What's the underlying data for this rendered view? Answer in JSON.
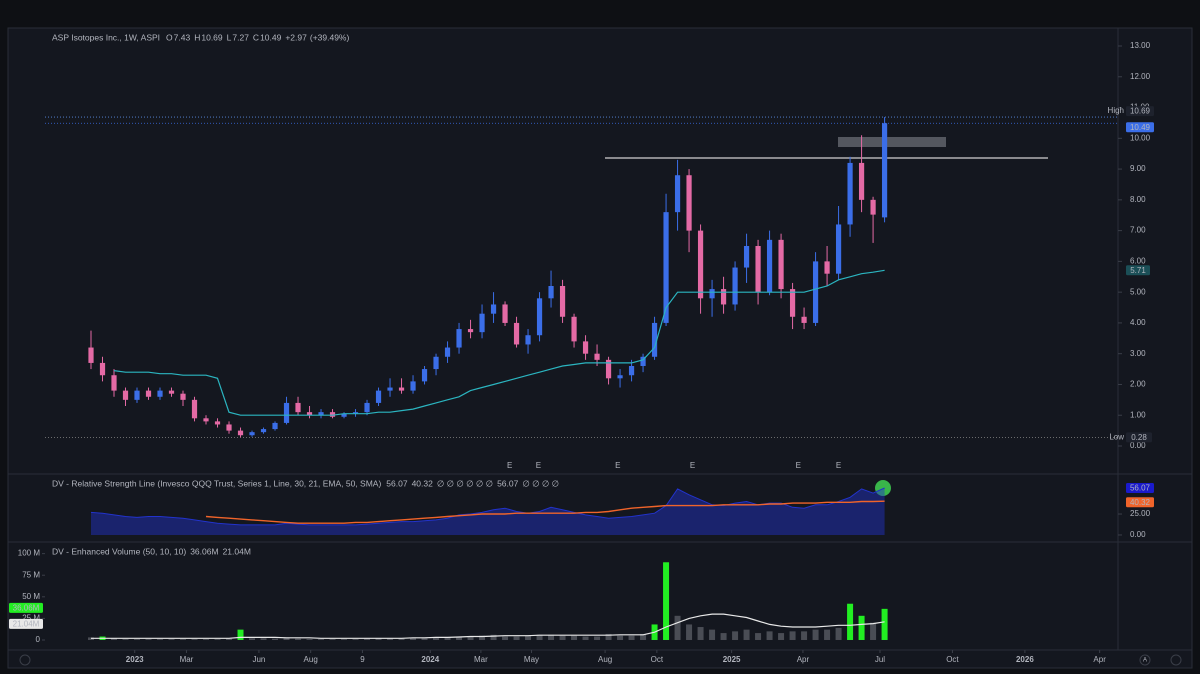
{
  "chart_data": [
    {
      "type": "candlestick",
      "title": "ASP Isotopes Inc., 1W, ASPI",
      "ohlc_letters": [
        "O",
        "H",
        "L",
        "C"
      ],
      "change": {
        "value": 2.97,
        "label": "+2.97"
      },
      "change_pct": {
        "value": 39.49,
        "label": "(+39.49%)"
      },
      "high_label": "High",
      "low_label": "Low",
      "up_color": "#3b6ee8",
      "down_color": "#e46aa5",
      "ma_color": "#2bb5c0",
      "categories": [
        null,
        null,
        null,
        null,
        null,
        null,
        null,
        null,
        null,
        null,
        null,
        null,
        null,
        null,
        null,
        null,
        null,
        null,
        null,
        null,
        null,
        null,
        null,
        null,
        null,
        null,
        null,
        null,
        null,
        null,
        null,
        null,
        null,
        null,
        null,
        null,
        null,
        null,
        null,
        null,
        null,
        null,
        null,
        null,
        null,
        null,
        null,
        null,
        null,
        null,
        null,
        null,
        null,
        null,
        null,
        null,
        null,
        null,
        null,
        null,
        null,
        null,
        null,
        null,
        null,
        null,
        null,
        null,
        null,
        null
      ],
      "open": [
        3.2,
        2.7,
        2.3,
        1.8,
        1.5,
        1.8,
        1.6,
        1.8,
        1.7,
        1.5,
        0.9,
        0.8,
        0.7,
        0.5,
        0.35,
        0.45,
        0.55,
        0.75,
        1.4,
        1.1,
        1.0,
        1.1,
        0.95,
        1.05,
        1.1,
        1.4,
        1.8,
        1.9,
        1.8,
        2.1,
        2.5,
        2.9,
        3.2,
        3.8,
        3.7,
        4.3,
        4.6,
        4.0,
        3.3,
        3.6,
        4.8,
        5.2,
        4.2,
        3.4,
        3.0,
        2.8,
        2.2,
        2.3,
        2.6,
        2.9,
        4.0,
        7.6,
        8.8,
        7.0,
        4.8,
        5.1,
        4.6,
        5.8,
        6.5,
        5.0,
        6.7,
        5.1,
        4.2,
        4.0,
        6.0,
        5.6,
        7.2,
        9.2,
        8.0,
        7.43
      ],
      "high": [
        3.75,
        2.9,
        2.5,
        1.9,
        1.9,
        1.9,
        1.9,
        1.9,
        1.8,
        1.6,
        1.0,
        0.9,
        0.8,
        0.6,
        0.5,
        0.6,
        0.8,
        1.6,
        1.6,
        1.3,
        1.2,
        1.2,
        1.1,
        1.2,
        1.5,
        1.9,
        2.2,
        2.2,
        2.3,
        2.6,
        3.0,
        3.4,
        4.0,
        4.1,
        4.6,
        5.0,
        4.7,
        4.2,
        3.8,
        5.0,
        5.7,
        5.4,
        4.3,
        3.6,
        3.3,
        2.9,
        2.5,
        2.8,
        3.0,
        4.2,
        8.2,
        9.3,
        9.0,
        7.2,
        5.4,
        5.5,
        6.0,
        6.9,
        6.7,
        7.0,
        6.9,
        5.3,
        4.5,
        6.3,
        6.5,
        7.8,
        9.4,
        10.1,
        8.1,
        10.69
      ],
      "low": [
        2.5,
        2.1,
        1.6,
        1.3,
        1.4,
        1.5,
        1.5,
        1.6,
        1.3,
        0.8,
        0.7,
        0.6,
        0.4,
        0.28,
        0.3,
        0.4,
        0.5,
        0.7,
        1.0,
        0.9,
        0.9,
        0.9,
        0.9,
        0.95,
        1.0,
        1.3,
        1.6,
        1.7,
        1.7,
        2.0,
        2.3,
        2.7,
        3.0,
        3.5,
        3.5,
        4.0,
        3.9,
        3.2,
        3.0,
        3.4,
        4.5,
        4.0,
        3.2,
        2.8,
        2.6,
        2.0,
        1.9,
        2.1,
        2.4,
        2.8,
        3.9,
        7.0,
        6.3,
        4.3,
        4.2,
        4.3,
        4.4,
        5.3,
        4.6,
        4.9,
        4.8,
        3.8,
        3.8,
        3.9,
        5.2,
        5.4,
        6.8,
        7.6,
        6.6,
        7.27
      ],
      "close": [
        2.7,
        2.3,
        1.8,
        1.5,
        1.8,
        1.6,
        1.8,
        1.7,
        1.5,
        0.9,
        0.8,
        0.7,
        0.5,
        0.35,
        0.45,
        0.55,
        0.75,
        1.4,
        1.1,
        1.0,
        1.1,
        0.95,
        1.05,
        1.1,
        1.4,
        1.8,
        1.9,
        1.8,
        2.1,
        2.5,
        2.9,
        3.2,
        3.8,
        3.7,
        4.3,
        4.6,
        4.0,
        3.3,
        3.6,
        4.8,
        5.2,
        4.2,
        3.4,
        3.0,
        2.8,
        2.2,
        2.3,
        2.6,
        2.9,
        4.0,
        7.6,
        8.8,
        7.0,
        4.8,
        5.1,
        4.6,
        5.8,
        6.5,
        5.0,
        6.7,
        5.1,
        4.2,
        4.0,
        6.0,
        5.6,
        7.2,
        9.2,
        8.0,
        7.52,
        10.49
      ],
      "ma": [
        null,
        null,
        2.45,
        2.4,
        2.4,
        2.4,
        2.35,
        2.35,
        2.3,
        2.3,
        2.3,
        2.2,
        1.1,
        1.0,
        1.0,
        1.0,
        1.0,
        1.0,
        1.0,
        1.0,
        1.0,
        1.0,
        1.05,
        1.05,
        1.05,
        1.1,
        1.1,
        1.15,
        1.2,
        1.3,
        1.4,
        1.5,
        1.6,
        1.8,
        1.9,
        2.0,
        2.1,
        2.2,
        2.3,
        2.4,
        2.5,
        2.6,
        2.65,
        2.7,
        2.7,
        2.7,
        2.7,
        2.7,
        2.8,
        3.2,
        4.5,
        5.0,
        5.0,
        5.0,
        5.0,
        5.0,
        5.0,
        5.0,
        5.0,
        5.0,
        5.0,
        5.0,
        5.0,
        5.1,
        5.2,
        5.4,
        5.5,
        5.6,
        5.65,
        5.71
      ],
      "events": [
        {
          "x": 36.4,
          "label": "E"
        },
        {
          "x": 38.9,
          "label": "E"
        },
        {
          "x": 45.8,
          "label": "E"
        },
        {
          "x": 52.3,
          "label": "E"
        },
        {
          "x": 61.5,
          "label": "E"
        },
        {
          "x": 65,
          "label": "E"
        }
      ],
      "xlim": [
        -4,
        88.6
      ],
      "ylim": [
        -0.78,
        13.52
      ],
      "yticks": [
        {
          "value": 0,
          "label": "0.00"
        },
        {
          "value": 1,
          "label": "1.00"
        },
        {
          "value": 2,
          "label": "2.00"
        },
        {
          "value": 3,
          "label": "3.00"
        },
        {
          "value": 4,
          "label": "4.00"
        },
        {
          "value": 5,
          "label": "5.00"
        },
        {
          "value": 6,
          "label": "6.00"
        },
        {
          "value": 7,
          "label": "7.00"
        },
        {
          "value": 8,
          "label": "8.00"
        },
        {
          "value": 9,
          "label": "9.00"
        },
        {
          "value": 10,
          "label": "10.00"
        },
        {
          "value": 11,
          "label": "11.00"
        },
        {
          "value": 12,
          "label": "12.00"
        },
        {
          "value": 13,
          "label": "13.00"
        }
      ],
      "xticks": [
        {
          "value": 3.8,
          "label": "2023"
        },
        {
          "value": 8.3,
          "label": "Mar"
        },
        {
          "value": 14.6,
          "label": "Jun"
        },
        {
          "value": 19.1,
          "label": "Aug"
        },
        {
          "value": 23.6,
          "label": "9"
        },
        {
          "value": 29.5,
          "label": "2024"
        },
        {
          "value": 33.9,
          "label": "Mar"
        },
        {
          "value": 38.3,
          "label": "May"
        },
        {
          "value": 44.7,
          "label": "Aug"
        },
        {
          "value": 49.2,
          "label": "Oct"
        },
        {
          "value": 55.7,
          "label": "2025"
        },
        {
          "value": 61.9,
          "label": "Apr"
        },
        {
          "value": 68.6,
          "label": "Jul"
        },
        {
          "value": 74.9,
          "label": "Oct"
        },
        {
          "value": 81.2,
          "label": "2026"
        },
        {
          "value": 87.7,
          "label": "Apr"
        }
      ],
      "corner_label": "A"
    },
    {
      "type": "line",
      "title": "DV - Relative Strength Line (Invesco QQQ Trust, Series 1, Line, 30, 21, EMA, 50, SMA)",
      "legend_extra": [
        "∅ ∅ ∅ ∅ ∅ ∅",
        "∅ ∅ ∅ ∅"
      ],
      "highlight_color": "#39d353",
      "series": [
        {
          "color": "#2233cc",
          "values": [
            27,
            26,
            24,
            22,
            21,
            22,
            22,
            21,
            20,
            18,
            16,
            14,
            13,
            12,
            12,
            12,
            12,
            14,
            13,
            12,
            12,
            12,
            12,
            12,
            13,
            14,
            15,
            16,
            16,
            17,
            18,
            20,
            24,
            25,
            27,
            30,
            32,
            28,
            26,
            28,
            33,
            30,
            27,
            24,
            22,
            20,
            21,
            22,
            24,
            26,
            35,
            55,
            48,
            42,
            36,
            35,
            38,
            40,
            36,
            38,
            38,
            33,
            32,
            36,
            36,
            40,
            45,
            55,
            50,
            56.07
          ]
        },
        {
          "color": "#f0642a",
          "values": [
            null,
            null,
            null,
            null,
            null,
            null,
            null,
            null,
            null,
            null,
            22,
            21,
            20,
            19,
            18,
            17,
            16,
            15,
            14,
            14,
            14,
            14,
            14,
            15,
            15,
            16,
            17,
            18,
            19,
            20,
            21,
            22,
            23,
            24,
            25,
            25,
            25,
            26,
            26,
            26,
            26,
            26,
            26,
            27,
            27,
            28,
            30,
            32,
            33,
            34,
            35,
            35,
            35,
            35,
            35,
            36,
            36,
            36,
            36,
            37,
            37,
            38,
            38,
            38,
            39,
            39,
            39,
            40,
            40,
            40.32
          ]
        }
      ],
      "ylim": [
        -6,
        68
      ],
      "yticks": [
        {
          "value": 0,
          "label": "0.00"
        },
        {
          "value": 25,
          "label": "25.00"
        }
      ]
    },
    {
      "type": "bar",
      "title": "DV - Enhanced Volume (50, 10, 10)",
      "highlight_color": "#22ee22",
      "series": [
        {
          "color": "#4a4d55",
          "values": [
            3,
            4,
            2,
            1,
            1,
            1,
            1,
            1,
            1,
            1,
            1,
            1,
            1.5,
            12,
            2,
            2,
            1.5,
            3,
            1.5,
            1,
            1,
            1,
            1,
            1,
            1.5,
            2,
            1.5,
            1.5,
            2,
            2,
            3,
            3,
            4,
            4,
            5,
            6,
            4,
            4,
            5,
            6,
            6,
            5,
            5,
            4,
            4,
            7,
            5,
            5,
            7,
            18,
            90,
            28,
            18,
            15,
            12,
            8,
            10,
            12,
            8,
            10,
            8,
            10,
            10,
            12,
            12,
            14,
            42,
            28,
            20,
            36.06
          ]
        },
        {
          "color": "#e8e8e8",
          "values": [
            2,
            2,
            2,
            2,
            2,
            2,
            2,
            2,
            2,
            2,
            2,
            2,
            2,
            3,
            3,
            3,
            3,
            2.5,
            2.5,
            2.5,
            2,
            2,
            2,
            2,
            2,
            2,
            2,
            2,
            2.5,
            2.5,
            3,
            3,
            3.5,
            4,
            4,
            4.5,
            5,
            5,
            5,
            5.5,
            5.5,
            5.5,
            5.5,
            5.5,
            5.5,
            5.5,
            6,
            6,
            6,
            9,
            15,
            20,
            25,
            28,
            30,
            30,
            28,
            26,
            22,
            18,
            16,
            15,
            15,
            15,
            16,
            17,
            17,
            18,
            19,
            21.04
          ]
        }
      ],
      "readouts": [
        {
          "value": 36.06,
          "label": "36.06M"
        },
        {
          "value": 21.04,
          "label": "21.04M"
        }
      ],
      "ylim": [
        -5.8,
        110
      ],
      "yticks": [
        {
          "value": 0,
          "label": "0"
        },
        {
          "value": 25,
          "label": "25 M"
        },
        {
          "value": 50,
          "label": "50 M"
        },
        {
          "value": 75,
          "label": "75 M"
        },
        {
          "value": 100,
          "label": "100 M"
        }
      ]
    }
  ]
}
